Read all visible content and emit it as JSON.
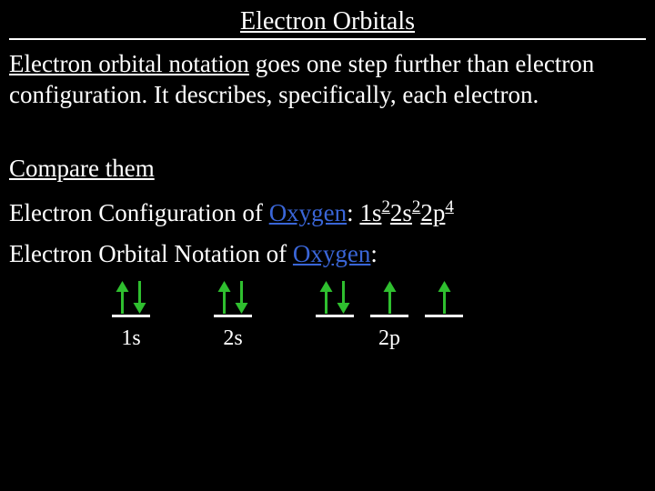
{
  "title": "Electron Orbitals",
  "intro": {
    "lead": "Electron orbital notation",
    "rest": " goes one step further than electron configuration. It describes, specifically, each electron."
  },
  "compare_heading": "Compare them",
  "config_line": {
    "prefix": "Electron Configuration of ",
    "element": "Oxygen",
    "colon": ": ",
    "parts": [
      {
        "base": "1s",
        "sup": "2"
      },
      {
        "base": "2s",
        "sup": "2"
      },
      {
        "base": "2p",
        "sup": "4"
      }
    ]
  },
  "notation_line": {
    "prefix": "Electron Orbital Notation of ",
    "element": "Oxygen",
    "suffix": ":"
  },
  "orbitals": {
    "arrow_color_up": "#2fbf2f",
    "arrow_color_down": "#2fbf2f",
    "line_color": "#ffffff",
    "groups": [
      {
        "label": "1s",
        "boxes": [
          [
            "up",
            "down"
          ]
        ]
      },
      {
        "label": "2s",
        "boxes": [
          [
            "up",
            "down"
          ]
        ]
      },
      {
        "label": "2p",
        "boxes": [
          [
            "up",
            "down"
          ],
          [
            "up"
          ],
          [
            "up"
          ]
        ]
      }
    ]
  }
}
